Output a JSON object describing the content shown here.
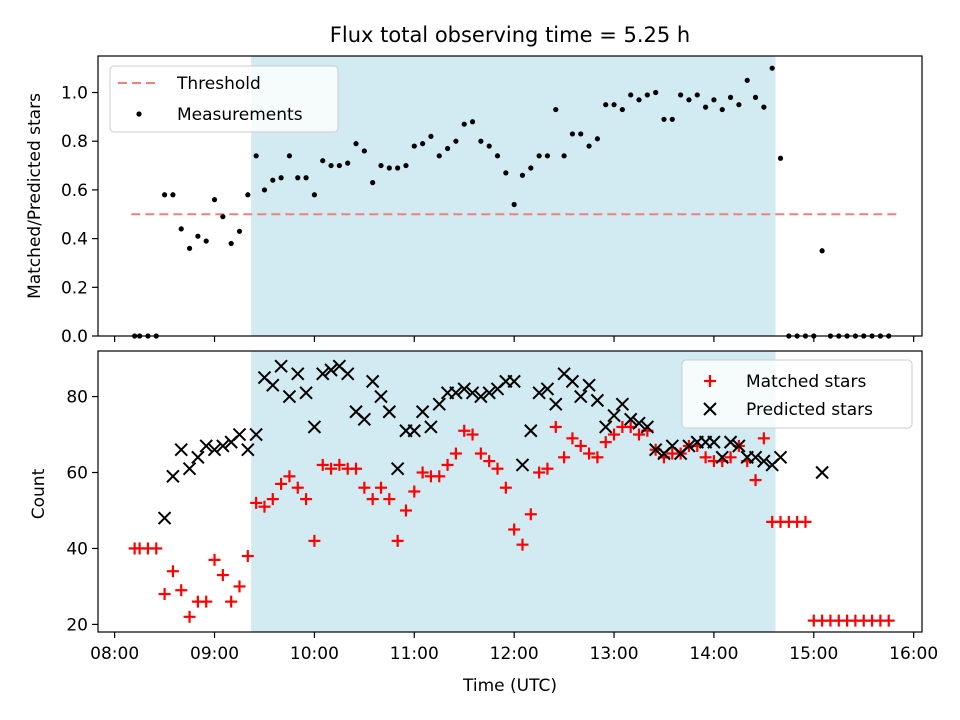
{
  "title": "Flux total observing time = 5.25 h",
  "threshold_color": "#f08080",
  "highlight_color": "#add8e6",
  "chart_data": [
    {
      "type": "scatter",
      "panel": "top",
      "title": "Flux total observing time = 5.25 h",
      "xlabel": "",
      "ylabel": "Matched/Predicted stars",
      "ylim": [
        0,
        1.15
      ],
      "yticks": [
        0.0,
        0.2,
        0.4,
        0.6,
        0.8,
        1.0
      ],
      "ytick_labels": [
        "0.0",
        "0.2",
        "0.4",
        "0.6",
        "0.8",
        "1.0"
      ],
      "legend_position": "top-left",
      "shaded_interval": [
        "09:22",
        "14:37"
      ],
      "series": [
        {
          "name": "Threshold",
          "style": "dashed-line",
          "color": "#f08080",
          "x": [
            "08:10",
            "15:50"
          ],
          "y": [
            0.5,
            0.5
          ]
        },
        {
          "name": "Measurements",
          "style": "dot",
          "color": "#000000",
          "x": [
            "08:12",
            "08:15",
            "08:20",
            "08:25",
            "08:30",
            "08:35",
            "08:40",
            "08:45",
            "08:50",
            "08:55",
            "09:00",
            "09:05",
            "09:10",
            "09:15",
            "09:20",
            "09:25",
            "09:30",
            "09:35",
            "09:40",
            "09:45",
            "09:50",
            "09:55",
            "10:00",
            "10:05",
            "10:10",
            "10:15",
            "10:20",
            "10:25",
            "10:30",
            "10:35",
            "10:40",
            "10:45",
            "10:50",
            "10:55",
            "11:00",
            "11:05",
            "11:10",
            "11:15",
            "11:20",
            "11:25",
            "11:30",
            "11:35",
            "11:40",
            "11:45",
            "11:50",
            "11:55",
            "12:00",
            "12:05",
            "12:10",
            "12:15",
            "12:20",
            "12:25",
            "12:30",
            "12:35",
            "12:40",
            "12:45",
            "12:50",
            "12:55",
            "13:00",
            "13:05",
            "13:10",
            "13:15",
            "13:20",
            "13:25",
            "13:30",
            "13:35",
            "13:40",
            "13:45",
            "13:50",
            "13:55",
            "14:00",
            "14:05",
            "14:10",
            "14:15",
            "14:20",
            "14:25",
            "14:30",
            "14:35",
            "14:40",
            "14:45",
            "14:50",
            "14:55",
            "15:00",
            "15:05",
            "15:10",
            "15:15",
            "15:20",
            "15:25",
            "15:30",
            "15:35",
            "15:40",
            "15:45"
          ],
          "y": [
            0.0,
            0.0,
            0.0,
            0.0,
            0.58,
            0.58,
            0.44,
            0.36,
            0.41,
            0.39,
            0.56,
            0.49,
            0.38,
            0.43,
            0.58,
            0.74,
            0.6,
            0.64,
            0.65,
            0.74,
            0.65,
            0.65,
            0.58,
            0.72,
            0.7,
            0.7,
            0.71,
            0.79,
            0.76,
            0.63,
            0.7,
            0.69,
            0.69,
            0.7,
            0.78,
            0.79,
            0.82,
            0.74,
            0.77,
            0.8,
            0.87,
            0.88,
            0.8,
            0.78,
            0.74,
            0.67,
            0.54,
            0.66,
            0.69,
            0.74,
            0.74,
            0.93,
            0.74,
            0.83,
            0.83,
            0.78,
            0.81,
            0.95,
            0.95,
            0.93,
            0.99,
            0.97,
            0.99,
            1.0,
            0.89,
            0.89,
            0.99,
            0.97,
            0.99,
            0.94,
            0.97,
            0.93,
            0.98,
            0.95,
            1.05,
            0.98,
            0.94,
            1.1,
            0.73,
            0.0,
            0.0,
            0.0,
            0.0,
            0.35,
            0.0,
            0.0,
            0.0,
            0.0,
            0.0,
            0.0,
            0.0,
            0.0
          ]
        }
      ]
    },
    {
      "type": "scatter",
      "panel": "bottom",
      "xlabel": "Time (UTC)",
      "ylabel": "Count",
      "ylim": [
        18,
        92
      ],
      "yticks": [
        20,
        40,
        60,
        80
      ],
      "ytick_labels": [
        "20",
        "40",
        "60",
        "80"
      ],
      "xlim": [
        "07:50",
        "16:05"
      ],
      "xticks": [
        "08:00",
        "09:00",
        "10:00",
        "11:00",
        "12:00",
        "13:00",
        "14:00",
        "15:00",
        "16:00"
      ],
      "xtick_labels": [
        "08:00",
        "09:00",
        "10:00",
        "11:00",
        "12:00",
        "13:00",
        "14:00",
        "15:00",
        "16:00"
      ],
      "legend_position": "top-right",
      "shaded_interval": [
        "09:22",
        "14:37"
      ],
      "series": [
        {
          "name": "Matched stars",
          "style": "plus",
          "color": "#ff0000",
          "x": [
            "08:12",
            "08:15",
            "08:20",
            "08:25",
            "08:30",
            "08:35",
            "08:40",
            "08:45",
            "08:50",
            "08:55",
            "09:00",
            "09:05",
            "09:10",
            "09:15",
            "09:20",
            "09:25",
            "09:30",
            "09:35",
            "09:40",
            "09:45",
            "09:50",
            "09:55",
            "10:00",
            "10:05",
            "10:10",
            "10:15",
            "10:20",
            "10:25",
            "10:30",
            "10:35",
            "10:40",
            "10:45",
            "10:50",
            "10:55",
            "11:00",
            "11:05",
            "11:10",
            "11:15",
            "11:20",
            "11:25",
            "11:30",
            "11:35",
            "11:40",
            "11:45",
            "11:50",
            "11:55",
            "12:00",
            "12:05",
            "12:10",
            "12:15",
            "12:20",
            "12:25",
            "12:30",
            "12:35",
            "12:40",
            "12:45",
            "12:50",
            "12:55",
            "13:00",
            "13:05",
            "13:10",
            "13:15",
            "13:20",
            "13:25",
            "13:30",
            "13:35",
            "13:40",
            "13:45",
            "13:50",
            "13:55",
            "14:00",
            "14:05",
            "14:10",
            "14:15",
            "14:20",
            "14:25",
            "14:30",
            "14:35",
            "14:40",
            "14:45",
            "14:50",
            "14:55",
            "15:00",
            "15:05",
            "15:10",
            "15:15",
            "15:20",
            "15:25",
            "15:30",
            "15:35",
            "15:40",
            "15:45"
          ],
          "y": [
            40,
            40,
            40,
            40,
            28,
            34,
            29,
            22,
            26,
            26,
            37,
            33,
            26,
            30,
            38,
            52,
            51,
            53,
            57,
            59,
            56,
            53,
            42,
            62,
            61,
            62,
            61,
            61,
            56,
            53,
            56,
            53,
            42,
            50,
            55,
            60,
            59,
            59,
            62,
            65,
            71,
            70,
            65,
            63,
            61,
            56,
            45,
            41,
            49,
            60,
            61,
            72,
            64,
            69,
            67,
            65,
            64,
            68,
            70,
            72,
            72,
            70,
            71,
            66,
            64,
            65,
            65,
            67,
            67,
            64,
            63,
            63,
            64,
            67,
            63,
            58,
            69,
            47,
            47,
            47,
            47,
            47,
            21,
            21,
            21,
            21,
            21,
            21,
            21,
            21,
            21,
            21
          ]
        },
        {
          "name": "Predicted stars",
          "style": "x",
          "color": "#000000",
          "x": [
            "08:30",
            "08:35",
            "08:40",
            "08:45",
            "08:50",
            "08:55",
            "09:00",
            "09:05",
            "09:10",
            "09:15",
            "09:20",
            "09:25",
            "09:30",
            "09:35",
            "09:40",
            "09:45",
            "09:50",
            "09:55",
            "10:00",
            "10:05",
            "10:10",
            "10:15",
            "10:20",
            "10:25",
            "10:30",
            "10:35",
            "10:40",
            "10:45",
            "10:50",
            "10:55",
            "11:00",
            "11:05",
            "11:10",
            "11:15",
            "11:20",
            "11:25",
            "11:30",
            "11:35",
            "11:40",
            "11:45",
            "11:50",
            "11:55",
            "12:00",
            "12:05",
            "12:10",
            "12:15",
            "12:20",
            "12:25",
            "12:30",
            "12:35",
            "12:40",
            "12:45",
            "12:50",
            "12:55",
            "13:00",
            "13:05",
            "13:10",
            "13:15",
            "13:20",
            "13:25",
            "13:30",
            "13:35",
            "13:40",
            "13:45",
            "13:50",
            "13:55",
            "14:00",
            "14:05",
            "14:10",
            "14:15",
            "14:20",
            "14:25",
            "14:30",
            "14:35",
            "14:40",
            "15:05"
          ],
          "y": [
            48,
            59,
            66,
            61,
            64,
            67,
            66,
            67,
            68,
            70,
            66,
            70,
            85,
            83,
            88,
            80,
            86,
            81,
            72,
            86,
            87,
            88,
            86,
            76,
            74,
            84,
            80,
            76,
            61,
            71,
            71,
            76,
            72,
            78,
            81,
            81,
            82,
            81,
            80,
            81,
            82,
            84,
            84,
            62,
            71,
            81,
            82,
            78,
            86,
            84,
            80,
            83,
            79,
            72,
            75,
            78,
            74,
            73,
            72,
            66,
            65,
            67,
            65,
            67,
            68,
            68,
            68,
            64,
            68,
            67,
            64,
            64,
            63,
            62,
            64,
            60
          ]
        }
      ]
    }
  ]
}
